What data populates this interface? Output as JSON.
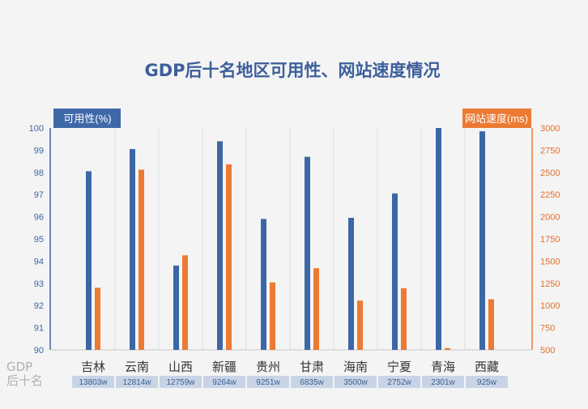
{
  "chart_data": {
    "type": "bar",
    "title": "GDP后十名地区可用性、网站速度情况",
    "categories": [
      "吉林",
      "云南",
      "山西",
      "新疆",
      "贵州",
      "甘肃",
      "海南",
      "宁夏",
      "青海",
      "西藏"
    ],
    "gdp_values": [
      "13803w",
      "12814w",
      "12759w",
      "9264w",
      "9251w",
      "6835w",
      "3500w",
      "2752w",
      "2301w",
      "925w"
    ],
    "gdp_row_label_line1": "GDP",
    "gdp_row_label_line2": "后十名",
    "series": [
      {
        "name": "可用性(%)",
        "axis": "left",
        "color": "#3c67a5",
        "values": [
          98.05,
          99.05,
          93.8,
          99.4,
          95.9,
          98.7,
          95.95,
          97.05,
          100.0,
          99.85
        ]
      },
      {
        "name": "网站速度(ms)",
        "axis": "right",
        "color": "#ec7a33",
        "values": [
          1200,
          2530,
          1565,
          2590,
          1260,
          1420,
          1055,
          1195,
          520,
          1070
        ]
      }
    ],
    "left_axis": {
      "label": "可用性(%)",
      "min": 90,
      "max": 100,
      "ticks": [
        "90",
        "91",
        "92",
        "93",
        "94",
        "95",
        "96",
        "97",
        "98",
        "99",
        "100"
      ]
    },
    "right_axis": {
      "label": "网站速度(ms)",
      "min": 500,
      "max": 3000,
      "ticks": [
        "500",
        "750",
        "1000",
        "1250",
        "1500",
        "1750",
        "2000",
        "2250",
        "2500",
        "2750",
        "3000"
      ]
    },
    "grid": true
  }
}
